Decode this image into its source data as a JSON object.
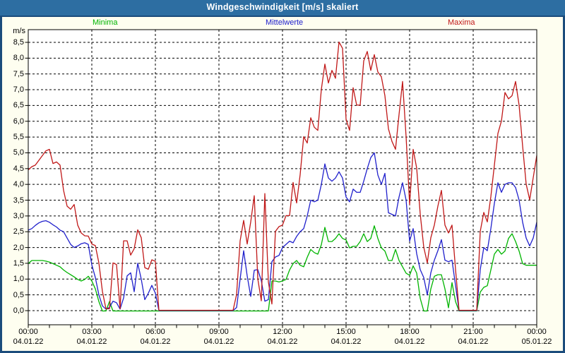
{
  "window": {
    "title": "Windgeschwindigkeit [m/s] skaliert"
  },
  "colors": {
    "titlebar_bg": "#2D6EA2",
    "frame": "#1B4C7C",
    "page_bg": "#FEFEF0",
    "plot_bg": "#FFFFFF",
    "grid": "#000000",
    "minima": "#00B400",
    "mittelwerte": "#2020CC",
    "maxima": "#C01818"
  },
  "legend": [
    {
      "label": "Minima",
      "color": "#00B400"
    },
    {
      "label": "Mittelwerte",
      "color": "#2020CC"
    },
    {
      "label": "Maxima",
      "color": "#C01818"
    }
  ],
  "axes": {
    "y_unit": "m/s",
    "y_tick_labels": [
      "8,5",
      "8,0",
      "7,5",
      "7,0",
      "6,5",
      "6,0",
      "5,5",
      "5,0",
      "4,5",
      "4,0",
      "3,5",
      "3,0",
      "2,5",
      "2,0",
      "1,5",
      "1,0",
      "0,5",
      "0,0"
    ],
    "x_ticks": [
      {
        "time": "00:00",
        "date": "04.01.22"
      },
      {
        "time": "03:00",
        "date": "04.01.22"
      },
      {
        "time": "06:00",
        "date": "04.01.22"
      },
      {
        "time": "09:00",
        "date": "04.01.22"
      },
      {
        "time": "12:00",
        "date": "04.01.22"
      },
      {
        "time": "15:00",
        "date": "04.01.22"
      },
      {
        "time": "18:00",
        "date": "04.01.22"
      },
      {
        "time": "21:00",
        "date": "04.01.22"
      },
      {
        "time": "00:00",
        "date": "05.01.22"
      }
    ]
  },
  "chart_data": {
    "type": "line",
    "title": "Windgeschwindigkeit [m/s] skaliert",
    "ylabel": "m/s",
    "ylim": [
      0,
      8.5
    ],
    "y_step": 0.5,
    "x_start": "04.01.22 00:00",
    "x_end": "05.01.22 00:00",
    "x_step_minutes": 10,
    "grid": "dashed",
    "legend_position": "top",
    "series": [
      {
        "name": "Minima",
        "color": "#00B400",
        "values": [
          1.5,
          1.6,
          1.6,
          1.6,
          1.6,
          1.58,
          1.55,
          1.5,
          1.45,
          1.4,
          1.3,
          1.22,
          1.15,
          1.08,
          1.0,
          0.95,
          1.0,
          1.1,
          0.95,
          0.7,
          0.3,
          0,
          0,
          0.3,
          0,
          0,
          0,
          0,
          0,
          0,
          0,
          0,
          0,
          0,
          0,
          0,
          0,
          0,
          0,
          0,
          0,
          0,
          0,
          0,
          0,
          0,
          0,
          0,
          0,
          0,
          0,
          0,
          0,
          0,
          0,
          0,
          0,
          0,
          0,
          0,
          0,
          0,
          0,
          0,
          0,
          0,
          0,
          0,
          0,
          0.95,
          0.95,
          0.92,
          0.95,
          1.0,
          1.3,
          1.5,
          1.6,
          1.45,
          1.4,
          1.7,
          1.95,
          1.85,
          1.8,
          2.1,
          2.65,
          2.2,
          2.2,
          2.3,
          2.45,
          2.3,
          2.25,
          2.0,
          2.05,
          2.05,
          2.2,
          2.45,
          2.2,
          2.3,
          2.7,
          2.3,
          2.0,
          1.9,
          1.6,
          1.6,
          1.95,
          1.6,
          1.4,
          1.2,
          1.13,
          1.43,
          1.2,
          0.4,
          0,
          0,
          0.7,
          1.1,
          1.15,
          1.15,
          0.7,
          0.1,
          0.9,
          0.3,
          0,
          0,
          0,
          0,
          0,
          0,
          0.6,
          0.75,
          0.8,
          1.3,
          1.8,
          1.95,
          1.8,
          1.9,
          2.3,
          2.45,
          2.2,
          1.9,
          1.5,
          1.45,
          1.45,
          1.45,
          1.45
        ]
      },
      {
        "name": "Mittelwerte",
        "color": "#2020CC",
        "values": [
          2.55,
          2.6,
          2.7,
          2.78,
          2.83,
          2.85,
          2.8,
          2.72,
          2.65,
          2.55,
          2.5,
          2.3,
          2.1,
          2.0,
          2.05,
          2.12,
          2.15,
          2.1,
          1.45,
          1.05,
          0.5,
          0.15,
          0.05,
          0.1,
          0.3,
          0.25,
          0.05,
          0.4,
          1.1,
          1.2,
          0.6,
          1.5,
          1.0,
          0.35,
          0.55,
          0.8,
          0.55,
          0,
          0,
          0,
          0,
          0,
          0,
          0,
          0,
          0,
          0,
          0,
          0,
          0,
          0,
          0,
          0,
          0,
          0,
          0,
          0,
          0,
          0,
          0.1,
          1.0,
          1.9,
          1.1,
          0.45,
          1.28,
          1.3,
          0.95,
          0.3,
          0.35,
          1.55,
          1.7,
          1.75,
          2.0,
          2.1,
          2.2,
          2.15,
          2.35,
          2.5,
          2.6,
          3.0,
          3.5,
          3.45,
          3.5,
          4.0,
          4.65,
          4.2,
          4.1,
          4.2,
          4.4,
          4.2,
          3.6,
          3.45,
          3.85,
          3.75,
          3.75,
          4.1,
          4.5,
          4.85,
          5.0,
          4.3,
          4.0,
          4.35,
          3.1,
          3.05,
          3.0,
          3.6,
          4.05,
          3.5,
          2.2,
          2.6,
          1.8,
          1.3,
          1.05,
          0.5,
          1.2,
          1.6,
          1.9,
          2.25,
          1.6,
          1.55,
          1.6,
          0.8,
          0,
          0,
          0,
          0,
          0,
          0,
          1.3,
          2.0,
          1.9,
          2.6,
          3.4,
          4.05,
          3.75,
          4.0,
          4.05,
          4.05,
          3.9,
          3.5,
          2.8,
          2.3,
          2.05,
          2.3,
          2.8
        ]
      },
      {
        "name": "Maxima",
        "color": "#C01818",
        "values": [
          4.45,
          4.55,
          4.6,
          4.75,
          4.9,
          5.05,
          5.1,
          4.65,
          4.7,
          4.6,
          3.8,
          3.3,
          3.2,
          3.35,
          2.7,
          2.45,
          2.36,
          2.35,
          2.1,
          2.05,
          1.5,
          0.6,
          0.05,
          0.05,
          1.5,
          1.45,
          0.05,
          2.2,
          2.2,
          1.75,
          1.95,
          2.55,
          2.3,
          1.35,
          1.3,
          1.6,
          1.55,
          0,
          0,
          0,
          0,
          0,
          0,
          0,
          0,
          0,
          0,
          0,
          0,
          0,
          0,
          0,
          0,
          0,
          0,
          0,
          0,
          0,
          0,
          0.5,
          2.2,
          2.85,
          2.1,
          2.8,
          3.63,
          1.0,
          0.3,
          3.7,
          0.9,
          0.2,
          2.5,
          2.65,
          2.7,
          3.0,
          3.0,
          4.05,
          3.4,
          4.3,
          5.5,
          5.3,
          6.1,
          5.8,
          5.7,
          7.0,
          7.8,
          7.2,
          7.6,
          7.35,
          8.5,
          8.3,
          6.05,
          5.7,
          7.05,
          6.5,
          6.5,
          7.9,
          8.2,
          7.6,
          8.1,
          7.55,
          7.4,
          6.8,
          5.75,
          5.35,
          5.1,
          6.2,
          7.25,
          5.5,
          3.35,
          5.1,
          4.5,
          3.05,
          2.0,
          1.5,
          2.3,
          2.7,
          3.3,
          3.8,
          2.7,
          2.45,
          2.7,
          1.3,
          0,
          0,
          0,
          0,
          0,
          0,
          2.5,
          3.1,
          2.8,
          3.6,
          4.6,
          5.6,
          6.0,
          6.9,
          6.7,
          6.8,
          7.25,
          6.5,
          5.2,
          4.0,
          3.5,
          4.2,
          4.9
        ]
      }
    ]
  }
}
